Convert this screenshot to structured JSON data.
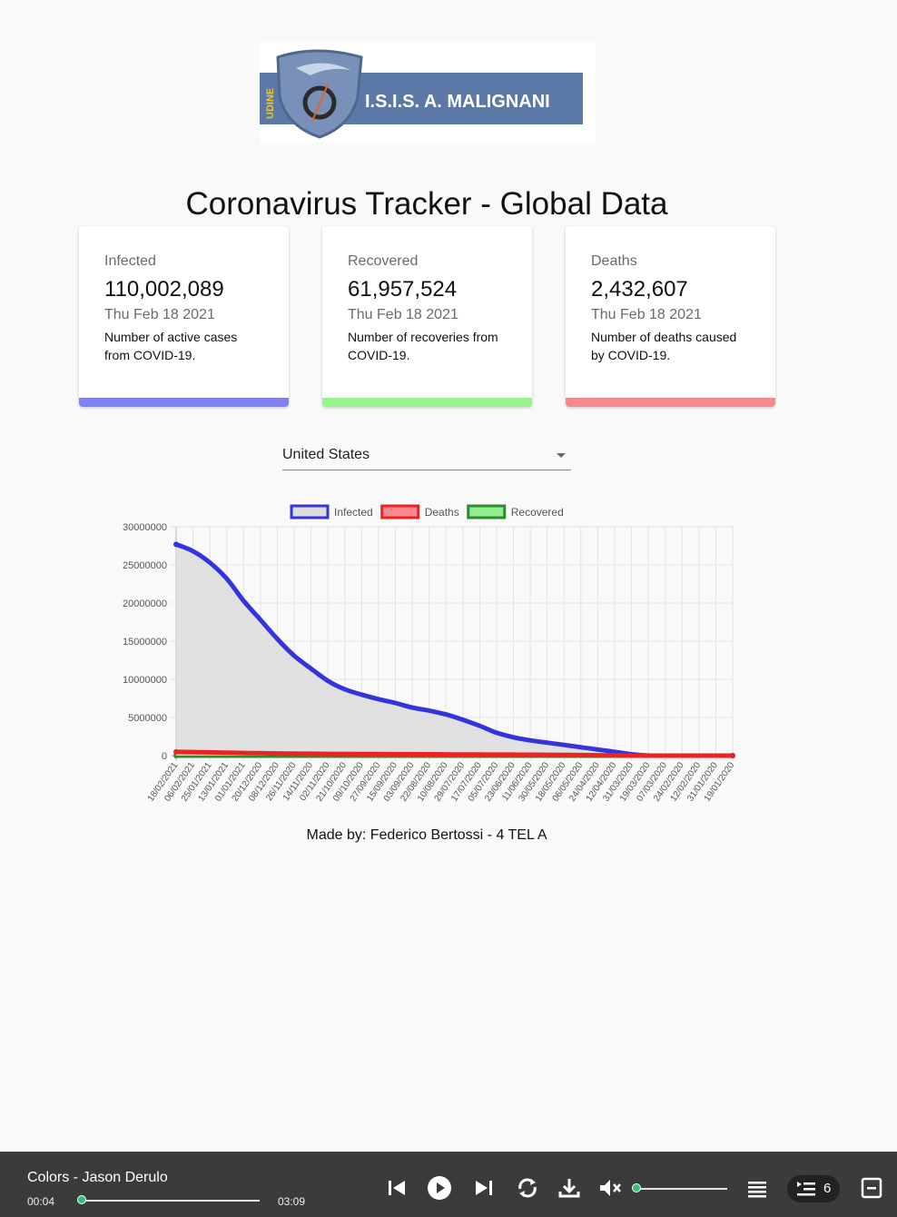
{
  "logo": {
    "text": "I.S.I.S. A. MALIGNANI",
    "side_text": "UDINE",
    "colors": {
      "band": "#5b78a6",
      "shield": "#7991b8",
      "text": "#ffffff"
    }
  },
  "page_title": "Coronavirus Tracker - Global Data",
  "cards": [
    {
      "label": "Infected",
      "value": "110,002,089",
      "date": "Thu Feb 18 2021",
      "description": "Number of active cases from COVID-19.",
      "color": "#8080f5"
    },
    {
      "label": "Recovered",
      "value": "61,957,524",
      "date": "Thu Feb 18 2021",
      "description": "Number of recoveries from COVID-19.",
      "color": "#98f58e"
    },
    {
      "label": "Deaths",
      "value": "2,432,607",
      "date": "Thu Feb 18 2021",
      "description": "Number of deaths caused by COVID-19.",
      "color": "#f5898e"
    }
  ],
  "country_select": {
    "value": "United States"
  },
  "chart_data": {
    "type": "line",
    "title": "",
    "xlabel": "",
    "ylabel": "",
    "x": [
      "18/02/2021",
      "06/02/2021",
      "25/01/2021",
      "13/01/2021",
      "01/01/2021",
      "20/12/2020",
      "08/12/2020",
      "26/11/2020",
      "14/11/2020",
      "02/11/2020",
      "21/10/2020",
      "09/10/2020",
      "27/09/2020",
      "15/09/2020",
      "03/09/2020",
      "22/08/2020",
      "10/08/2020",
      "29/07/2020",
      "17/07/2020",
      "05/07/2020",
      "23/06/2020",
      "11/06/2020",
      "30/05/2020",
      "18/05/2020",
      "06/05/2020",
      "24/04/2020",
      "12/04/2020",
      "31/03/2020",
      "19/03/2020",
      "07/03/2020",
      "24/02/2020",
      "12/02/2020",
      "31/01/2020",
      "19/01/2020"
    ],
    "series": [
      {
        "name": "Infected",
        "color": "#3434dd",
        "fill": "#dddddd",
        "values": [
          27700000,
          26800000,
          25300000,
          23200000,
          20300000,
          17800000,
          15300000,
          13100000,
          11400000,
          9800000,
          8700000,
          8000000,
          7400000,
          6900000,
          6300000,
          5900000,
          5400000,
          4700000,
          3900000,
          3000000,
          2400000,
          2000000,
          1700000,
          1400000,
          1100000,
          800000,
          500000,
          180000,
          10000,
          400,
          60,
          15,
          6,
          1
        ]
      },
      {
        "name": "Deaths",
        "color": "#ee2222",
        "values": [
          490000,
          470000,
          430000,
          390000,
          350000,
          320000,
          290000,
          265000,
          245000,
          232000,
          221000,
          212000,
          204000,
          196000,
          188000,
          178000,
          165000,
          152000,
          140000,
          132000,
          125000,
          117000,
          106000,
          92000,
          75000,
          52000,
          26000,
          5000,
          200,
          20,
          0,
          0,
          0,
          0
        ]
      },
      {
        "name": "Recovered",
        "color": "#2e8b2e",
        "fill": "#90ee90",
        "values": [
          0,
          0,
          0,
          0,
          0,
          0,
          0,
          0,
          0,
          0,
          0,
          0,
          0,
          0,
          0,
          0,
          0,
          0,
          0,
          0,
          0,
          0,
          0,
          0,
          0,
          0,
          0,
          0,
          0,
          0,
          0,
          0,
          0,
          0
        ]
      }
    ],
    "y_ticks": [
      "30000000",
      "25000000",
      "20000000",
      "15000000",
      "10000000",
      "5000000",
      "0"
    ],
    "ylim": [
      0,
      30000000
    ],
    "grid": true,
    "legend_position": "top"
  },
  "credit": "Made by: Federico Bertossi - 4 TEL A",
  "player": {
    "track": "Colors - Jason Derulo",
    "current_time": "00:04",
    "duration": "03:09",
    "progress": 0.02,
    "volume": 0.0,
    "queue_count": "6",
    "accent": "#2ec27e",
    "icons": [
      "previous-icon",
      "play-icon",
      "next-icon",
      "repeat-icon",
      "download-icon",
      "mute-icon",
      "playlist-icon",
      "queue-icon",
      "minimize-icon"
    ]
  }
}
